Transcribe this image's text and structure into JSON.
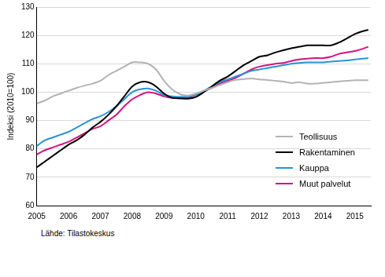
{
  "chart_data": {
    "type": "line",
    "y_label": "Indeksi (2010=100)",
    "source": "Lähde: Tilastokeskus",
    "x": [
      2005,
      2005.25,
      2005.5,
      2005.75,
      2006,
      2006.25,
      2006.5,
      2006.75,
      2007,
      2007.25,
      2007.5,
      2007.75,
      2008,
      2008.25,
      2008.5,
      2008.75,
      2009,
      2009.25,
      2009.5,
      2009.75,
      2010,
      2010.25,
      2010.5,
      2010.75,
      2011,
      2011.25,
      2011.5,
      2011.75,
      2012,
      2012.25,
      2012.5,
      2012.75,
      2013,
      2013.25,
      2013.5,
      2013.75,
      2014,
      2014.25,
      2014.5,
      2014.75,
      2015,
      2015.25,
      2015.42
    ],
    "series": [
      {
        "name": "Teollisuus",
        "color": "#b3b3b3",
        "values": [
          96,
          97,
          98.5,
          99.5,
          100.5,
          101.5,
          102.3,
          103,
          104,
          106,
          107.5,
          109,
          110.5,
          110.5,
          110,
          108,
          104,
          101,
          99.3,
          98.8,
          99.5,
          100.5,
          101.5,
          102.5,
          103.5,
          104.3,
          104.6,
          104.8,
          104.5,
          104.3,
          104,
          103.7,
          103.2,
          103.5,
          103,
          103,
          103.3,
          103.5,
          103.8,
          104,
          104.2,
          104.2,
          104.2
        ]
      },
      {
        "name": "Rakentaminen",
        "color": "#000000",
        "values": [
          73.5,
          75.5,
          77.5,
          79.5,
          81.5,
          83,
          85,
          87.5,
          89.5,
          92,
          95,
          98.5,
          102,
          103.5,
          103.5,
          102,
          99.5,
          98,
          97.8,
          97.7,
          98.3,
          100,
          102,
          104,
          105.5,
          107.5,
          109.5,
          111,
          112.5,
          113,
          114,
          114.8,
          115.5,
          116,
          116.5,
          116.5,
          116.5,
          116.5,
          117.5,
          119,
          120.5,
          121.5,
          122
        ]
      },
      {
        "name": "Kauppa",
        "color": "#2a93d5",
        "values": [
          81,
          83,
          84,
          85,
          86,
          87.5,
          89,
          90.5,
          91.5,
          93,
          95,
          97.5,
          100,
          101,
          101.3,
          100.5,
          99,
          98.5,
          98.3,
          98.5,
          99,
          100.5,
          102,
          103.5,
          104.5,
          105.5,
          106.5,
          107.5,
          108,
          108.5,
          109,
          109.5,
          110,
          110.3,
          110.5,
          110.5,
          110.5,
          110.8,
          111,
          111.2,
          111.5,
          111.8,
          112
        ]
      },
      {
        "name": "Muut palvelut",
        "color": "#d4137f",
        "values": [
          78,
          79.5,
          80.5,
          81.5,
          82.5,
          84,
          85.5,
          87,
          88,
          90,
          92,
          95,
          97.5,
          99,
          100,
          99.5,
          98.5,
          98,
          98,
          98,
          99,
          100.3,
          101.5,
          103,
          104,
          105,
          106.5,
          108,
          109,
          109.5,
          110,
          110.3,
          111,
          111.5,
          111.8,
          112,
          112,
          112.5,
          113.5,
          114,
          114.5,
          115.3,
          116
        ]
      }
    ],
    "xlim": [
      2005,
      2015.5
    ],
    "xticks": [
      2005,
      2006,
      2007,
      2008,
      2009,
      2010,
      2011,
      2012,
      2013,
      2014,
      2015
    ],
    "ylim": [
      60,
      130
    ],
    "yticks": [
      60,
      70,
      80,
      90,
      100,
      110,
      120,
      130
    ],
    "grid": true,
    "legend": "lower right"
  }
}
